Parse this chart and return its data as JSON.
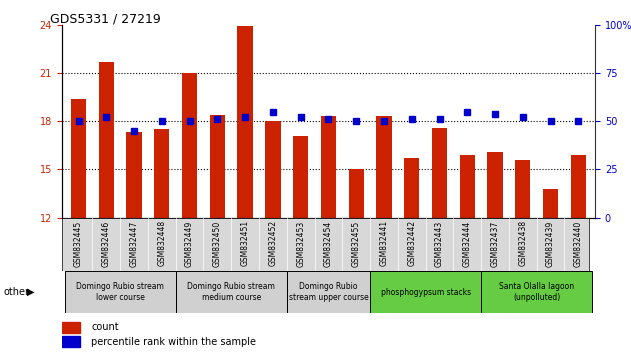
{
  "title": "GDS5331 / 27219",
  "samples": [
    "GSM832445",
    "GSM832446",
    "GSM832447",
    "GSM832448",
    "GSM832449",
    "GSM832450",
    "GSM832451",
    "GSM832452",
    "GSM832453",
    "GSM832454",
    "GSM832455",
    "GSM832441",
    "GSM832442",
    "GSM832443",
    "GSM832444",
    "GSM832437",
    "GSM832438",
    "GSM832439",
    "GSM832440"
  ],
  "counts": [
    19.4,
    21.7,
    17.3,
    17.5,
    21.0,
    18.4,
    23.9,
    18.0,
    17.1,
    18.3,
    15.0,
    18.3,
    15.7,
    17.6,
    15.9,
    16.1,
    15.6,
    13.8,
    15.9
  ],
  "percentiles": [
    50,
    52,
    45,
    50,
    50,
    51,
    52,
    55,
    52,
    51,
    50,
    50,
    51,
    51,
    55,
    54,
    52,
    50,
    50
  ],
  "bar_color": "#cc2200",
  "dot_color": "#0000cc",
  "ylim_left": [
    12,
    24
  ],
  "ylim_right": [
    0,
    100
  ],
  "yticks_left": [
    12,
    15,
    18,
    21,
    24
  ],
  "yticks_right": [
    0,
    25,
    50,
    75,
    100
  ],
  "groups": [
    {
      "label": "Domingo Rubio stream\nlower course",
      "start": 0,
      "end": 3,
      "color": "#d0d0d0"
    },
    {
      "label": "Domingo Rubio stream\nmedium course",
      "start": 4,
      "end": 7,
      "color": "#d0d0d0"
    },
    {
      "label": "Domingo Rubio\nstream upper course",
      "start": 8,
      "end": 10,
      "color": "#d0d0d0"
    },
    {
      "label": "phosphogypsum stacks",
      "start": 11,
      "end": 14,
      "color": "#66cc44"
    },
    {
      "label": "Santa Olalla lagoon\n(unpolluted)",
      "start": 15,
      "end": 18,
      "color": "#66cc44"
    }
  ],
  "legend_count_label": "count",
  "legend_pct_label": "percentile rank within the sample",
  "other_label": "other",
  "background_color": "#ffffff",
  "ylabel_left_color": "#cc2200",
  "ylabel_right_color": "#0000cc",
  "bar_width": 0.55
}
